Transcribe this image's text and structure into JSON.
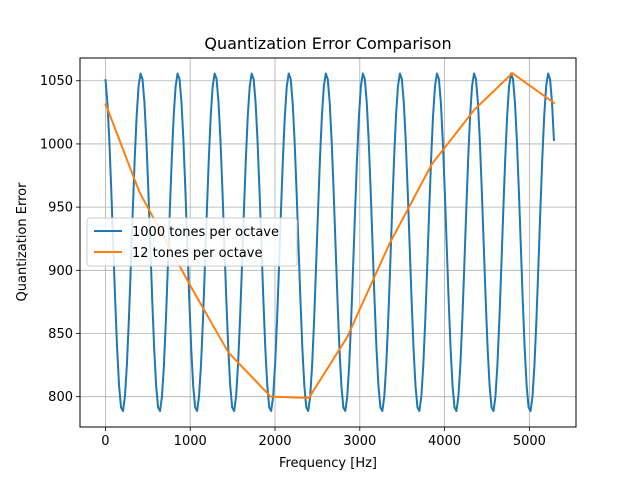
{
  "chart_data": {
    "type": "line",
    "title": "Quantization Error Comparison",
    "xlabel": "Frequency [Hz]",
    "ylabel": "Quantization Error",
    "xlim": [
      -300,
      5550
    ],
    "ylim": [
      776,
      1068
    ],
    "xticks": [
      0,
      1000,
      2000,
      3000,
      4000,
      5000
    ],
    "xtick_labels": [
      "0",
      "1000",
      "2000",
      "3000",
      "4000",
      "5000"
    ],
    "yticks": [
      800,
      850,
      900,
      950,
      1000,
      1050
    ],
    "ytick_labels": [
      "800",
      "850",
      "900",
      "950",
      "1000",
      "1050"
    ],
    "grid": true,
    "legend_position": "center-left",
    "series": [
      {
        "name": "1000 tones per octave",
        "color": "#1f77b4",
        "shape": "sinusoid",
        "x_start": 0,
        "x_end": 5300,
        "period": 437,
        "first_min_x": 200,
        "min": 788,
        "max": 1056
      },
      {
        "name": "12 tones per octave",
        "color": "#ff7f0e",
        "x": [
          0,
          400,
          1000,
          1450,
          1950,
          2400,
          2850,
          3350,
          3850,
          4350,
          4800,
          5300
        ],
        "y": [
          1032,
          962,
          888,
          835,
          800,
          799,
          847,
          921,
          984,
          1027,
          1056,
          1032
        ]
      }
    ]
  }
}
